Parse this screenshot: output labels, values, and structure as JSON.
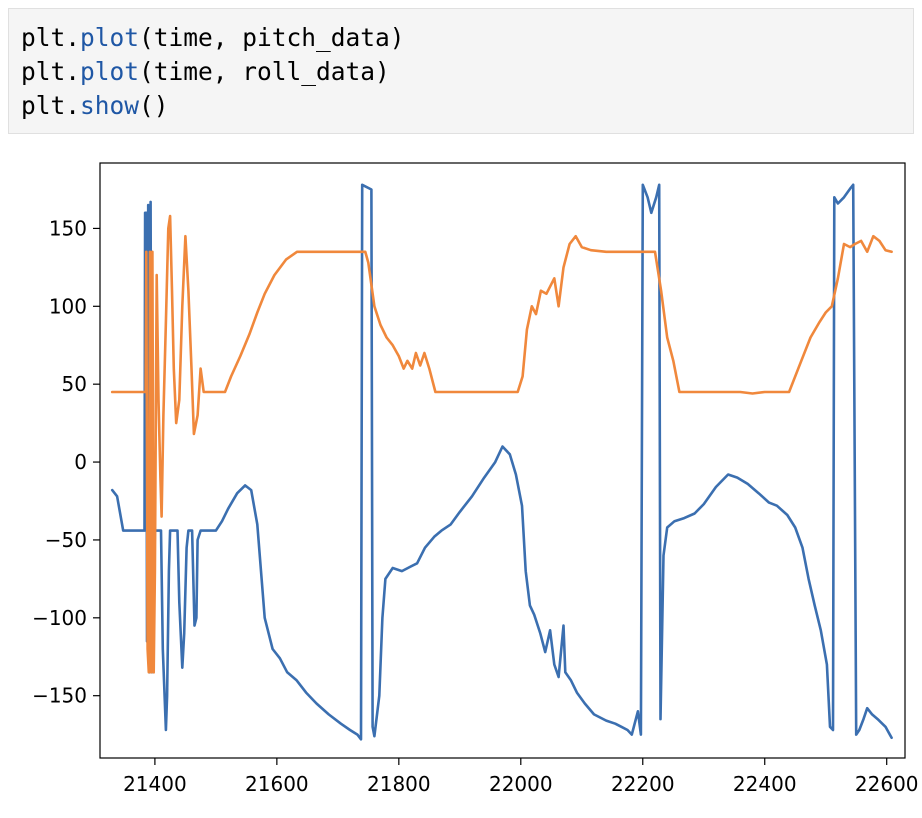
{
  "code": {
    "lines": [
      {
        "obj": "plt",
        "dot": ".",
        "fn": "plot",
        "args": "(time, pitch_data)"
      },
      {
        "obj": "plt",
        "dot": ".",
        "fn": "plot",
        "args": "(time, roll_data)"
      },
      {
        "obj": "plt",
        "dot": ".",
        "fn": "show",
        "args": "()"
      }
    ]
  },
  "chart_data": {
    "type": "line",
    "xlim": [
      21310,
      22630
    ],
    "ylim": [
      -190,
      192
    ],
    "grid": false,
    "x_ticks": [
      21400,
      21600,
      21800,
      22000,
      22200,
      22400,
      22600
    ],
    "x_tick_labels": [
      "21400",
      "21600",
      "21800",
      "22000",
      "22200",
      "22400",
      "22600"
    ],
    "y_ticks": [
      150,
      100,
      50,
      0,
      -50,
      -100,
      -150
    ],
    "y_tick_labels": [
      "150",
      "100",
      "50",
      "0",
      "−50",
      "−100",
      "−150"
    ],
    "series": [
      {
        "color": "#3b6fb0",
        "points": [
          [
            21330,
            -18
          ],
          [
            21338,
            -22
          ],
          [
            21348,
            -44
          ],
          [
            21360,
            -44
          ],
          [
            21375,
            -44
          ],
          [
            21383,
            -44
          ],
          [
            21384,
            160
          ],
          [
            21386,
            160
          ],
          [
            21387,
            -115
          ],
          [
            21389,
            165
          ],
          [
            21391,
            -135
          ],
          [
            21393,
            167
          ],
          [
            21395,
            -135
          ],
          [
            21398,
            -90
          ],
          [
            21400,
            -44
          ],
          [
            21410,
            -44
          ],
          [
            21413,
            -120
          ],
          [
            21418,
            -172
          ],
          [
            21420,
            -150
          ],
          [
            21423,
            -70
          ],
          [
            21425,
            -44
          ],
          [
            21437,
            -44
          ],
          [
            21440,
            -90
          ],
          [
            21445,
            -132
          ],
          [
            21448,
            -110
          ],
          [
            21452,
            -55
          ],
          [
            21455,
            -44
          ],
          [
            21461,
            -44
          ],
          [
            21465,
            -105
          ],
          [
            21468,
            -100
          ],
          [
            21470,
            -50
          ],
          [
            21475,
            -44
          ],
          [
            21500,
            -44
          ],
          [
            21510,
            -38
          ],
          [
            21520,
            -30
          ],
          [
            21535,
            -20
          ],
          [
            21548,
            -15
          ],
          [
            21558,
            -18
          ],
          [
            21568,
            -40
          ],
          [
            21580,
            -100
          ],
          [
            21593,
            -120
          ],
          [
            21605,
            -126
          ],
          [
            21617,
            -135
          ],
          [
            21632,
            -140
          ],
          [
            21648,
            -148
          ],
          [
            21665,
            -155
          ],
          [
            21685,
            -162
          ],
          [
            21705,
            -168
          ],
          [
            21720,
            -172
          ],
          [
            21732,
            -175
          ],
          [
            21738,
            -178
          ],
          [
            21740,
            178
          ],
          [
            21755,
            175
          ],
          [
            21757,
            -170
          ],
          [
            21760,
            -176
          ],
          [
            21768,
            -150
          ],
          [
            21773,
            -100
          ],
          [
            21778,
            -75
          ],
          [
            21790,
            -68
          ],
          [
            21805,
            -70
          ],
          [
            21820,
            -67
          ],
          [
            21830,
            -65
          ],
          [
            21843,
            -55
          ],
          [
            21858,
            -48
          ],
          [
            21870,
            -44
          ],
          [
            21885,
            -40
          ],
          [
            21900,
            -32
          ],
          [
            21920,
            -22
          ],
          [
            21940,
            -10
          ],
          [
            21958,
            0
          ],
          [
            21970,
            10
          ],
          [
            21982,
            5
          ],
          [
            21992,
            -8
          ],
          [
            22002,
            -28
          ],
          [
            22008,
            -70
          ],
          [
            22015,
            -92
          ],
          [
            22022,
            -98
          ],
          [
            22032,
            -110
          ],
          [
            22040,
            -122
          ],
          [
            22048,
            -108
          ],
          [
            22055,
            -130
          ],
          [
            22062,
            -138
          ],
          [
            22070,
            -105
          ],
          [
            22073,
            -135
          ],
          [
            22082,
            -140
          ],
          [
            22092,
            -148
          ],
          [
            22105,
            -155
          ],
          [
            22120,
            -162
          ],
          [
            22140,
            -166
          ],
          [
            22155,
            -168
          ],
          [
            22165,
            -170
          ],
          [
            22175,
            -172
          ],
          [
            22182,
            -175
          ],
          [
            22192,
            -160
          ],
          [
            22197,
            -175
          ],
          [
            22200,
            178
          ],
          [
            22208,
            170
          ],
          [
            22214,
            160
          ],
          [
            22222,
            170
          ],
          [
            22227,
            178
          ],
          [
            22229,
            -165
          ],
          [
            22234,
            -60
          ],
          [
            22240,
            -42
          ],
          [
            22252,
            -38
          ],
          [
            22268,
            -36
          ],
          [
            22285,
            -33
          ],
          [
            22300,
            -27
          ],
          [
            22320,
            -16
          ],
          [
            22340,
            -8
          ],
          [
            22355,
            -10
          ],
          [
            22372,
            -14
          ],
          [
            22390,
            -20
          ],
          [
            22407,
            -26
          ],
          [
            22420,
            -28
          ],
          [
            22437,
            -34
          ],
          [
            22450,
            -42
          ],
          [
            22462,
            -55
          ],
          [
            22472,
            -75
          ],
          [
            22482,
            -92
          ],
          [
            22492,
            -108
          ],
          [
            22502,
            -130
          ],
          [
            22507,
            -170
          ],
          [
            22512,
            -172
          ],
          [
            22514,
            170
          ],
          [
            22520,
            166
          ],
          [
            22530,
            170
          ],
          [
            22541,
            176
          ],
          [
            22545,
            178
          ],
          [
            22550,
            -175
          ],
          [
            22555,
            -172
          ],
          [
            22562,
            -165
          ],
          [
            22568,
            -158
          ],
          [
            22576,
            -162
          ],
          [
            22585,
            -165
          ],
          [
            22598,
            -170
          ],
          [
            22608,
            -177
          ]
        ]
      },
      {
        "color": "#f0883c",
        "points": [
          [
            21330,
            45
          ],
          [
            21360,
            45
          ],
          [
            21385,
            45
          ],
          [
            21386,
            135
          ],
          [
            21388,
            -120
          ],
          [
            21390,
            -135
          ],
          [
            21392,
            135
          ],
          [
            21394,
            -135
          ],
          [
            21396,
            135
          ],
          [
            21398,
            -135
          ],
          [
            21400,
            -70
          ],
          [
            21403,
            120
          ],
          [
            21406,
            40
          ],
          [
            21409,
            -10
          ],
          [
            21411,
            -35
          ],
          [
            21414,
            30
          ],
          [
            21418,
            90
          ],
          [
            21422,
            150
          ],
          [
            21425,
            158
          ],
          [
            21428,
            110
          ],
          [
            21431,
            60
          ],
          [
            21435,
            25
          ],
          [
            21440,
            40
          ],
          [
            21445,
            100
          ],
          [
            21450,
            145
          ],
          [
            21455,
            110
          ],
          [
            21460,
            60
          ],
          [
            21464,
            18
          ],
          [
            21470,
            30
          ],
          [
            21475,
            60
          ],
          [
            21480,
            45
          ],
          [
            21500,
            45
          ],
          [
            21515,
            45
          ],
          [
            21525,
            55
          ],
          [
            21540,
            68
          ],
          [
            21555,
            82
          ],
          [
            21568,
            96
          ],
          [
            21580,
            108
          ],
          [
            21596,
            120
          ],
          [
            21615,
            130
          ],
          [
            21633,
            135
          ],
          [
            21660,
            135
          ],
          [
            21690,
            135
          ],
          [
            21720,
            135
          ],
          [
            21745,
            135
          ],
          [
            21750,
            128
          ],
          [
            21760,
            100
          ],
          [
            21770,
            88
          ],
          [
            21780,
            80
          ],
          [
            21790,
            75
          ],
          [
            21800,
            68
          ],
          [
            21808,
            60
          ],
          [
            21814,
            65
          ],
          [
            21822,
            60
          ],
          [
            21828,
            70
          ],
          [
            21835,
            62
          ],
          [
            21842,
            70
          ],
          [
            21850,
            60
          ],
          [
            21860,
            45
          ],
          [
            21870,
            45
          ],
          [
            21900,
            45
          ],
          [
            21940,
            45
          ],
          [
            21975,
            45
          ],
          [
            21995,
            45
          ],
          [
            22003,
            55
          ],
          [
            22010,
            85
          ],
          [
            22018,
            100
          ],
          [
            22025,
            95
          ],
          [
            22033,
            110
          ],
          [
            22042,
            108
          ],
          [
            22055,
            118
          ],
          [
            22062,
            100
          ],
          [
            22070,
            125
          ],
          [
            22080,
            140
          ],
          [
            22090,
            145
          ],
          [
            22100,
            138
          ],
          [
            22115,
            136
          ],
          [
            22140,
            135
          ],
          [
            22170,
            135
          ],
          [
            22200,
            135
          ],
          [
            22220,
            135
          ],
          [
            22230,
            110
          ],
          [
            22240,
            80
          ],
          [
            22250,
            65
          ],
          [
            22260,
            45
          ],
          [
            22290,
            45
          ],
          [
            22330,
            45
          ],
          [
            22360,
            45
          ],
          [
            22380,
            44
          ],
          [
            22400,
            45
          ],
          [
            22440,
            45
          ],
          [
            22460,
            65
          ],
          [
            22475,
            80
          ],
          [
            22490,
            90
          ],
          [
            22500,
            96
          ],
          [
            22510,
            100
          ],
          [
            22520,
            118
          ],
          [
            22530,
            140
          ],
          [
            22540,
            138
          ],
          [
            22548,
            140
          ],
          [
            22558,
            142
          ],
          [
            22568,
            135
          ],
          [
            22578,
            145
          ],
          [
            22588,
            142
          ],
          [
            22598,
            136
          ],
          [
            22608,
            135
          ]
        ]
      }
    ]
  }
}
